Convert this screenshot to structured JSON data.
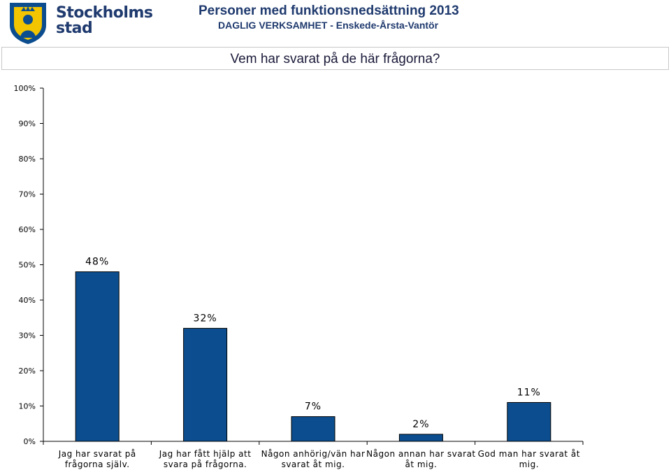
{
  "header": {
    "logo_text_line1": "Stockholms",
    "logo_text_line2": "stad",
    "title": "Personer med funktionsnedsättning 2013",
    "subtitle": "DAGLIG VERKSAMHET - Enskede-Årsta-Vantör"
  },
  "question": "Vem har svarat på de här frågorna?",
  "colors": {
    "bar": "#0b4d8e",
    "brand": "#1f3a6e",
    "axis": "#000000"
  },
  "chart_data": {
    "type": "bar",
    "title": "Vem har svarat på de här frågorna?",
    "categories": [
      [
        "Jag har svarat på",
        "frågorna själv."
      ],
      [
        "Jag har fått hjälp att",
        "svara på frågorna."
      ],
      [
        "Någon anhörig/vän har",
        "svarat åt mig."
      ],
      [
        "Någon annan har svarat",
        "åt mig."
      ],
      [
        "God man har svarat åt",
        "mig."
      ]
    ],
    "values": [
      48,
      32,
      7,
      2,
      11
    ],
    "data_labels": [
      "48%",
      "32%",
      "7%",
      "2%",
      "11%"
    ],
    "yticks": [
      "0%",
      "10%",
      "20%",
      "30%",
      "40%",
      "50%",
      "60%",
      "70%",
      "80%",
      "90%",
      "100%"
    ],
    "ylim": [
      0,
      100
    ],
    "grid": false,
    "legend": "none"
  }
}
